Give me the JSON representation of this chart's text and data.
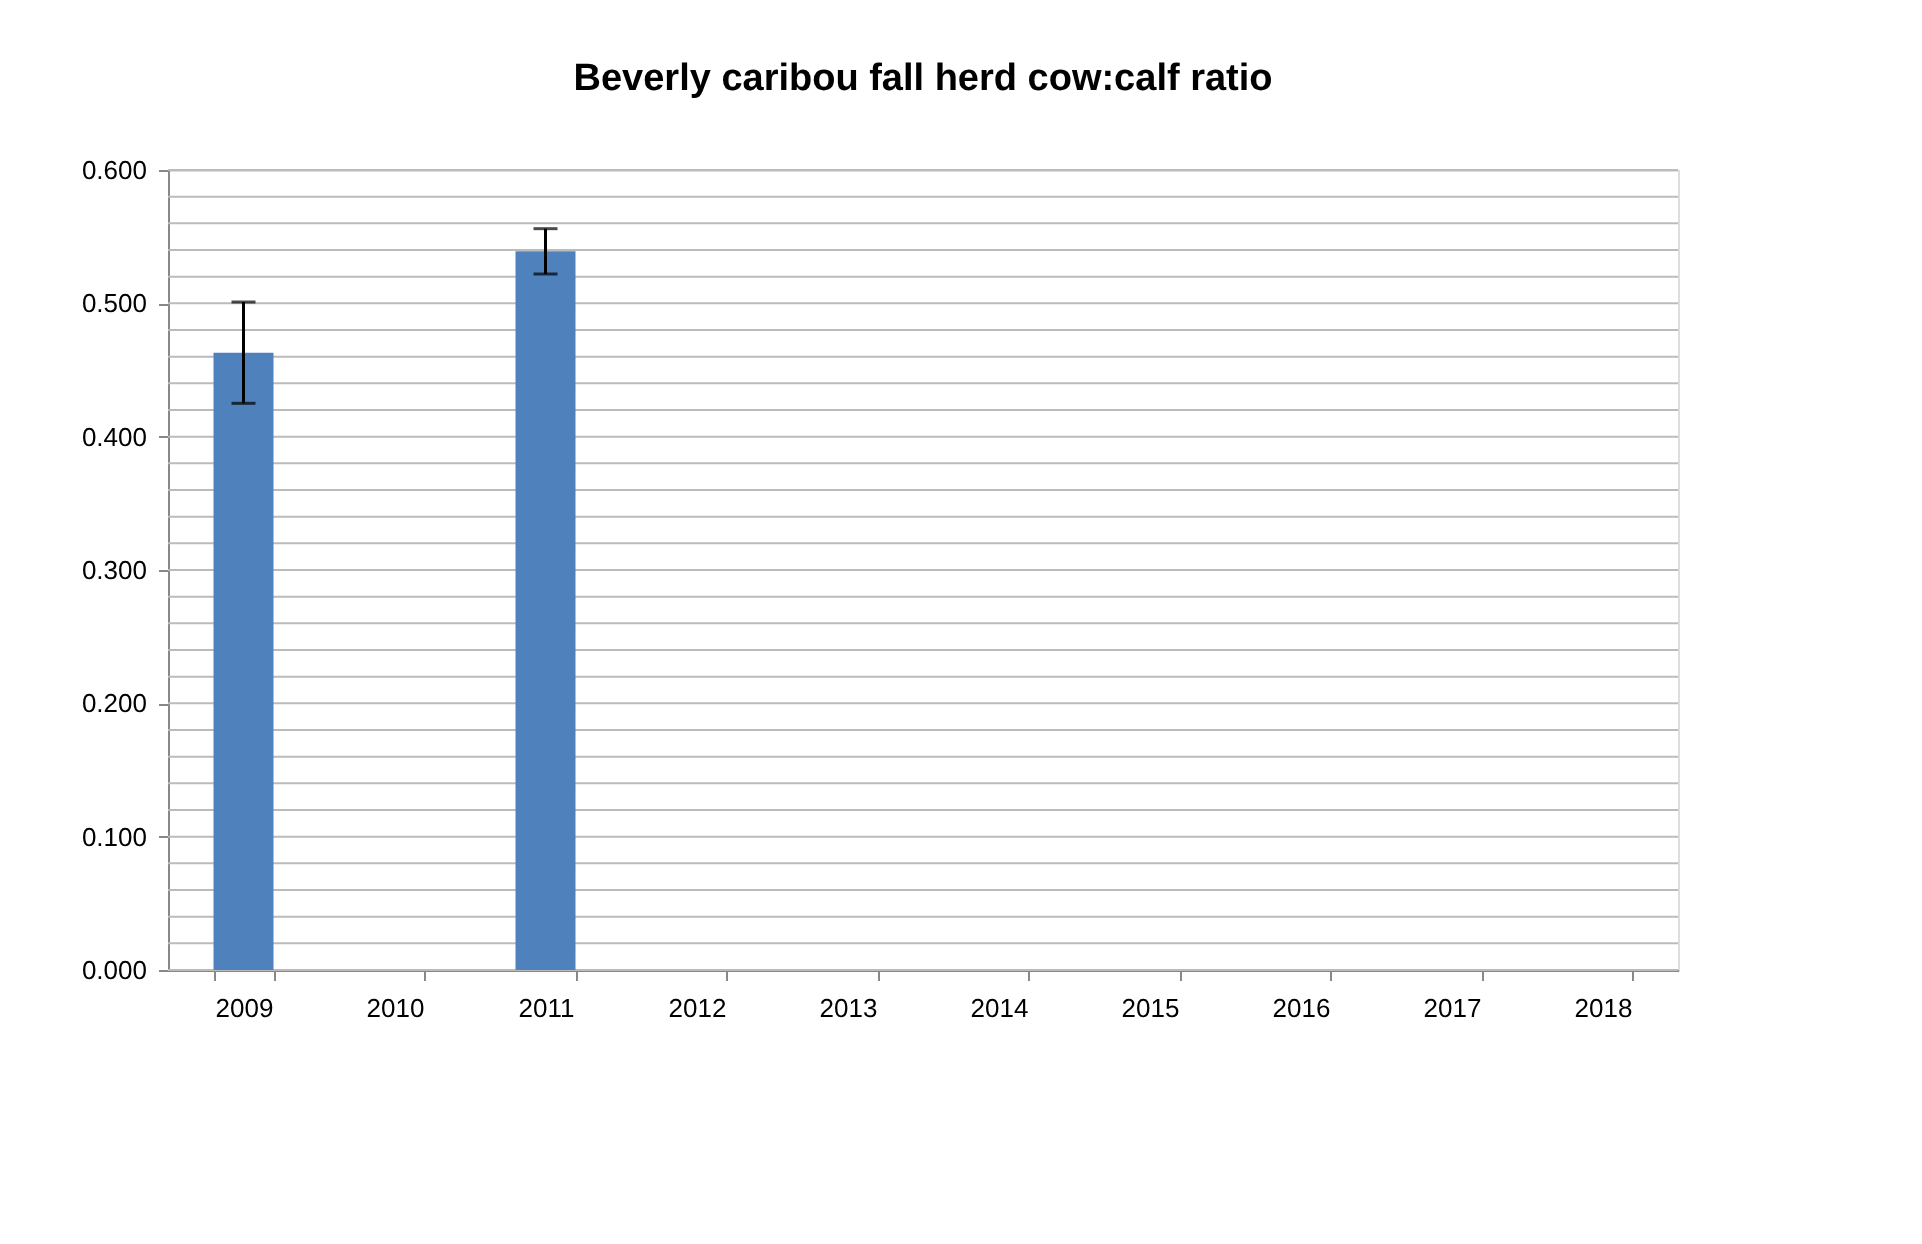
{
  "chart_data": {
    "type": "bar",
    "title": "Beverly caribou fall herd cow:calf ratio",
    "categories": [
      "2009",
      "2010",
      "2011",
      "2012",
      "2013",
      "2014",
      "2015",
      "2016",
      "2017",
      "2018"
    ],
    "series": [
      {
        "color": "#4f81bd",
        "values": [
          0.463,
          null,
          0.539,
          null,
          null,
          null,
          null,
          null,
          null,
          null
        ],
        "errors": [
          [
            0.425,
            0.501
          ],
          null,
          [
            0.522,
            0.556
          ],
          null,
          null,
          null,
          null,
          null,
          null,
          null
        ]
      }
    ],
    "ylim": [
      0,
      0.6
    ],
    "yticks": [
      {
        "value": 0,
        "label": "0.000"
      },
      {
        "value": 0.02,
        "label": null
      },
      {
        "value": 0.04,
        "label": null
      },
      {
        "value": 0.06,
        "label": null
      },
      {
        "value": 0.08,
        "label": null
      },
      {
        "value": 0.1,
        "label": "0.100"
      },
      {
        "value": 0.12,
        "label": null
      },
      {
        "value": 0.14,
        "label": null
      },
      {
        "value": 0.16,
        "label": null
      },
      {
        "value": 0.18,
        "label": null
      },
      {
        "value": 0.2,
        "label": "0.200"
      },
      {
        "value": 0.22,
        "label": null
      },
      {
        "value": 0.24,
        "label": null
      },
      {
        "value": 0.26,
        "label": null
      },
      {
        "value": 0.28,
        "label": null
      },
      {
        "value": 0.3,
        "label": "0.300"
      },
      {
        "value": 0.32,
        "label": null
      },
      {
        "value": 0.34,
        "label": null
      },
      {
        "value": 0.36,
        "label": null
      },
      {
        "value": 0.38,
        "label": null
      },
      {
        "value": 0.4,
        "label": "0.400"
      },
      {
        "value": 0.42,
        "label": null
      },
      {
        "value": 0.44,
        "label": null
      },
      {
        "value": 0.46,
        "label": null
      },
      {
        "value": 0.48,
        "label": null
      },
      {
        "value": 0.5,
        "label": "0.500"
      },
      {
        "value": 0.52,
        "label": null
      },
      {
        "value": 0.54,
        "label": null
      },
      {
        "value": 0.56,
        "label": null
      },
      {
        "value": 0.58,
        "label": null
      },
      {
        "value": 0.6,
        "label": "0.600"
      }
    ],
    "grid": "y",
    "legend": false
  }
}
